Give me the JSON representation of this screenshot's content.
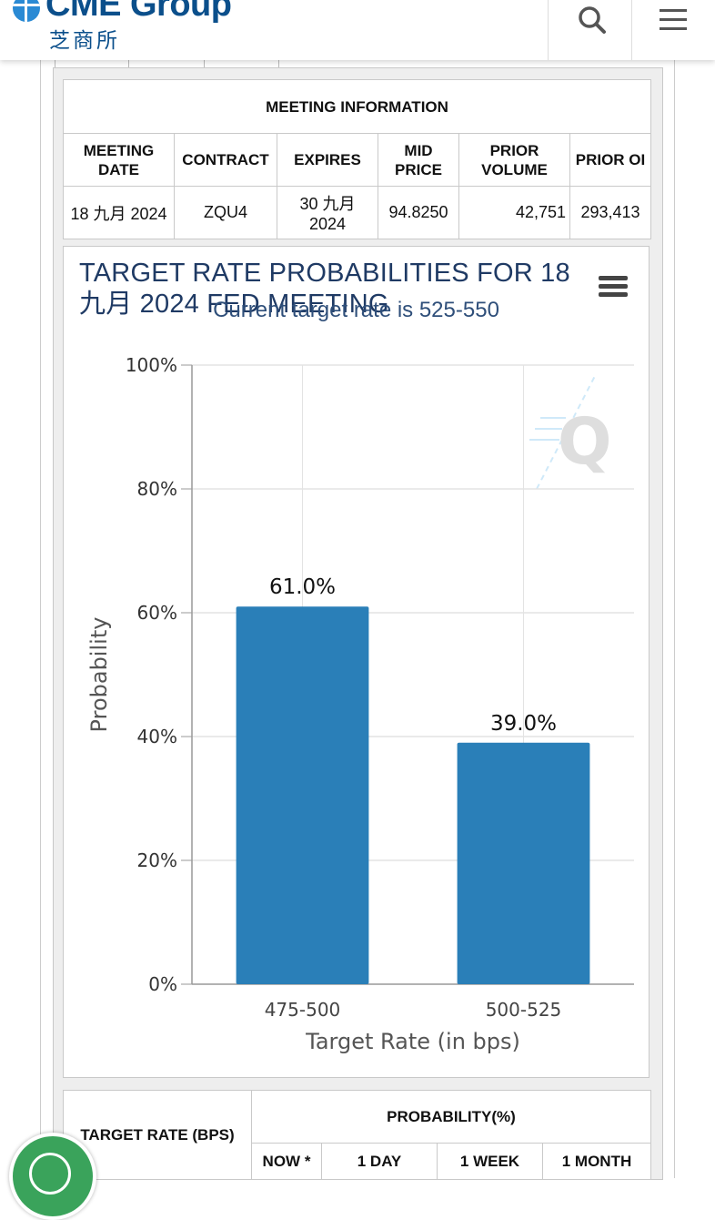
{
  "header": {
    "logo_text": "CME Group",
    "logo_cn": "芝商所",
    "search_icon": "search-icon",
    "menu_icon": "hamburger-menu-icon"
  },
  "meeting_info": {
    "title": "MEETING INFORMATION",
    "headers": [
      "MEETING DATE",
      "CONTRACT",
      "EXPIRES",
      "MID PRICE",
      "PRIOR VOLUME",
      "PRIOR OI"
    ],
    "row": [
      "18 九月 2024",
      "ZQU4",
      "30 九月 2024",
      "94.8250",
      "42,751",
      "293,413"
    ]
  },
  "chart_data": {
    "type": "bar",
    "title": "TARGET RATE PROBABILITIES FOR 18 九月 2024 FED MEETING",
    "subtitle": "Current target rate is 525-550",
    "categories": [
      "475-500",
      "500-525"
    ],
    "values": [
      61.0,
      39.0
    ],
    "data_labels": [
      "61.0%",
      "39.0%"
    ],
    "ylim": [
      0,
      100
    ],
    "yticks": [
      "0%",
      "20%",
      "40%",
      "60%",
      "80%",
      "100%"
    ],
    "xlabel": "Target Rate (in bps)",
    "ylabel": "Probability",
    "bar_color": "#2a7fb8",
    "grid": true
  },
  "prob_table": {
    "rate_header": "TARGET RATE (BPS)",
    "prob_header": "PROBABILITY(%)",
    "sub_headers": [
      "NOW *",
      "1 DAY",
      "1 WEEK",
      "1 MONTH"
    ]
  },
  "colors": {
    "brand": "#0b4f8b",
    "title": "#1f3a64",
    "badge": "#3aa35b"
  }
}
